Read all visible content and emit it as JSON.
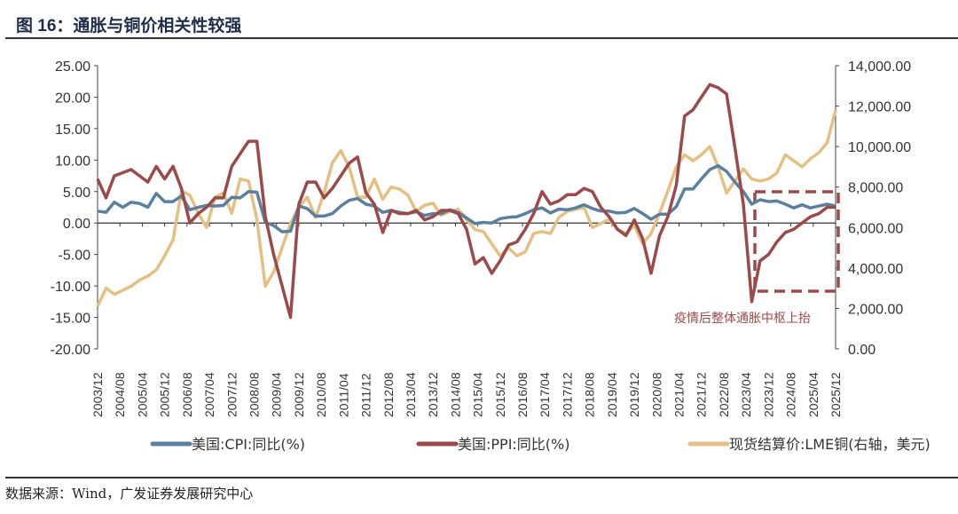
{
  "title": "图 16：通胀与铜价相关性较强",
  "source": "数据来源：Wind，广发证券发展研究中心",
  "chart_data": {
    "type": "line",
    "x_tick_labels": [
      "2003/12",
      "2004/08",
      "2005/04",
      "2005/12",
      "2006/08",
      "2007/04",
      "2007/12",
      "2008/08",
      "2009/04",
      "2009/12",
      "2010/08",
      "2011/04",
      "2011/12",
      "2012/08",
      "2013/04",
      "2013/12",
      "2014/08",
      "2015/04",
      "2015/12",
      "2016/08",
      "2017/04",
      "2017/12",
      "2018/08",
      "2019/04",
      "2019/12",
      "2020/08",
      "2021/04",
      "2021/12",
      "2022/08",
      "2023/04",
      "2023/12",
      "2024/08",
      "2025/04",
      "2025/12"
    ],
    "x_start": "2003-12",
    "x_step_months": 3,
    "y_left": {
      "range": [
        -20,
        25
      ],
      "ticks": [
        "25.00",
        "20.00",
        "15.00",
        "10.00",
        "5.00",
        "0.00",
        "-5.00",
        "-10.00",
        "-15.00",
        "-20.00"
      ]
    },
    "y_right": {
      "range": [
        0,
        14000
      ],
      "ticks": [
        "14,000.00",
        "12,000.00",
        "10,000.00",
        "8,000.00",
        "6,000.00",
        "4,000.00",
        "2,000.00",
        "0.00"
      ]
    },
    "series": [
      {
        "name": "美国:CPI:同比(%)",
        "axis": "left",
        "color": "#5b809f",
        "values": [
          1.9,
          1.7,
          3.3,
          2.5,
          3.3,
          3.1,
          2.5,
          4.7,
          3.4,
          3.4,
          4.3,
          2.1,
          2.5,
          2.8,
          2.7,
          2.8,
          4.1,
          4.0,
          5.0,
          4.9,
          0.1,
          -0.4,
          -1.4,
          -1.3,
          2.7,
          2.3,
          1.1,
          1.1,
          1.5,
          2.7,
          3.6,
          3.9,
          3.0,
          2.7,
          1.7,
          2.0,
          1.7,
          1.5,
          1.8,
          1.2,
          1.5,
          1.5,
          2.1,
          1.7,
          0.8,
          -0.1,
          0.1,
          0.0,
          0.7,
          0.9,
          1.0,
          1.5,
          2.1,
          2.4,
          1.6,
          2.2,
          2.1,
          2.4,
          2.9,
          2.3,
          1.9,
          1.9,
          1.6,
          1.7,
          2.3,
          1.5,
          0.6,
          1.4,
          1.4,
          2.6,
          5.4,
          5.4,
          7.0,
          8.5,
          9.1,
          8.2,
          6.5,
          5.0,
          3.0,
          3.7,
          3.4,
          3.5,
          3.0,
          2.4,
          2.9,
          2.4,
          2.7,
          3.0,
          2.7
        ]
      },
      {
        "name": "美国:PPI:同比(%)",
        "axis": "left",
        "color": "#9b4a4b",
        "values": [
          7.0,
          4.0,
          7.5,
          8.0,
          8.5,
          7.5,
          6.5,
          9.0,
          7.0,
          9.0,
          5.5,
          0.0,
          1.5,
          2.5,
          4.0,
          4.0,
          9.0,
          11.0,
          13.0,
          13.0,
          1.0,
          -5.0,
          -10.0,
          -15.0,
          3.0,
          6.5,
          6.5,
          4.0,
          5.5,
          7.5,
          9.5,
          10.5,
          4.8,
          3.0,
          -1.5,
          2.0,
          1.5,
          1.5,
          2.0,
          0.5,
          1.0,
          2.0,
          2.0,
          1.5,
          -1.0,
          -6.5,
          -5.5,
          -8.0,
          -6.0,
          -3.5,
          -3.0,
          -1.0,
          1.5,
          5.0,
          3.0,
          3.5,
          4.5,
          4.5,
          5.5,
          5.0,
          2.5,
          1.0,
          -1.0,
          -2.0,
          0.5,
          -2.5,
          -8.0,
          -2.0,
          1.0,
          6.0,
          17.0,
          18.0,
          20.0,
          22.0,
          21.5,
          20.5,
          12.0,
          3.0,
          -12.5,
          -6.0,
          -5.0,
          -3.0,
          -1.5,
          -1.0,
          0.0,
          1.0,
          1.5,
          2.5,
          2.5
        ]
      },
      {
        "name": "现货结算价:LME铜(右轴，美元)",
        "axis": "right",
        "color": "#e3c083",
        "values": [
          2100,
          3000,
          2700,
          2900,
          3100,
          3400,
          3600,
          3900,
          4600,
          5400,
          7800,
          7600,
          6700,
          6000,
          7500,
          7700,
          6700,
          8400,
          8300,
          6400,
          3100,
          3800,
          5000,
          6200,
          7000,
          7500,
          6500,
          7700,
          9200,
          9800,
          9000,
          7500,
          7500,
          8400,
          7400,
          8000,
          7900,
          7600,
          6800,
          7100,
          7200,
          6600,
          6800,
          6900,
          6400,
          5900,
          5800,
          5200,
          4600,
          5000,
          4600,
          4800,
          5700,
          5800,
          5700,
          6500,
          6800,
          6900,
          7000,
          6000,
          6200,
          6400,
          5900,
          5700,
          6100,
          5200,
          5700,
          6700,
          7800,
          9000,
          9600,
          9300,
          9600,
          10000,
          9000,
          7700,
          8300,
          8900,
          8400,
          8300,
          8400,
          8700,
          9600,
          9300,
          9000,
          9400,
          9700,
          10200,
          11800
        ]
      }
    ],
    "annotation": {
      "text": "疫情后整体通胀中枢上抬",
      "color": "#9b4a4b"
    },
    "legend": "bottom",
    "grid": false
  }
}
